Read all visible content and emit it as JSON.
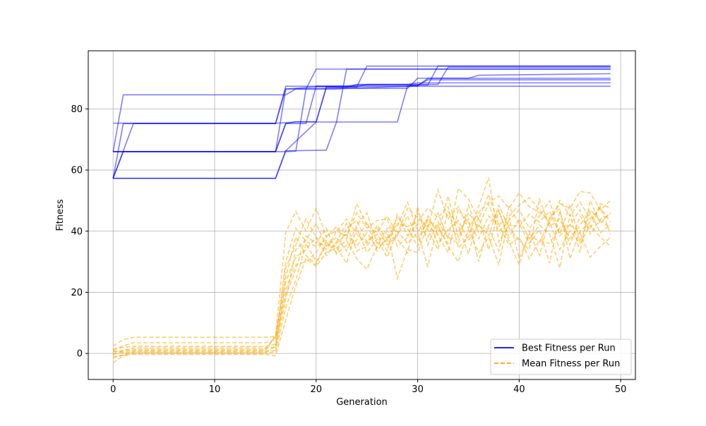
{
  "chart_data": {
    "type": "line",
    "title": "",
    "xlabel": "Generation",
    "ylabel": "Fitness",
    "xlim": [
      -2.45,
      51.45
    ],
    "ylim": [
      -8.5,
      99
    ],
    "xticks": [
      0,
      10,
      20,
      30,
      40,
      50
    ],
    "yticks": [
      0,
      20,
      40,
      60,
      80
    ],
    "grid": true,
    "legend_position": "bottom-right",
    "colors": {
      "best": "#0000ff",
      "mean": "#ffa500",
      "grid": "#b0b0b0"
    },
    "legend": [
      {
        "label": "Best Fitness per Run",
        "style": "solid",
        "color": "#0000ff"
      },
      {
        "label": "Mean Fitness per Run",
        "style": "dashed",
        "color": "#ffa500"
      }
    ],
    "best_runs": [
      [
        [
          0,
          75.3
        ],
        [
          16,
          75.3
        ],
        [
          17,
          75.5
        ],
        [
          18,
          75.7
        ],
        [
          20,
          75.7
        ],
        [
          21,
          87.2
        ],
        [
          24,
          87.2
        ],
        [
          25,
          88.0
        ],
        [
          32,
          88.0
        ],
        [
          33,
          93.6
        ],
        [
          49,
          93.6
        ]
      ],
      [
        [
          0,
          57.3
        ],
        [
          1,
          75.2
        ],
        [
          16,
          75.2
        ],
        [
          17,
          86.5
        ],
        [
          19,
          86.5
        ],
        [
          20,
          93.0
        ],
        [
          49,
          93.0
        ]
      ],
      [
        [
          0,
          66.0
        ],
        [
          1,
          84.6
        ],
        [
          17,
          84.6
        ],
        [
          18,
          86.5
        ],
        [
          22,
          86.5
        ],
        [
          23,
          86.7
        ],
        [
          29,
          86.7
        ],
        [
          30,
          90.0
        ],
        [
          49,
          90.0
        ]
      ],
      [
        [
          0,
          57.3
        ],
        [
          16,
          57.3
        ],
        [
          17,
          66.3
        ],
        [
          21,
          66.5
        ],
        [
          22,
          75.7
        ],
        [
          23,
          93.0
        ],
        [
          49,
          93.0
        ]
      ],
      [
        [
          0,
          57.3
        ],
        [
          2,
          75.2
        ],
        [
          16,
          75.2
        ],
        [
          17,
          87.4
        ],
        [
          49,
          87.4
        ]
      ],
      [
        [
          0,
          66.0
        ],
        [
          16,
          66.0
        ],
        [
          17,
          75.2
        ],
        [
          18,
          75.8
        ],
        [
          20,
          75.8
        ],
        [
          21,
          87.0
        ],
        [
          23,
          87.0
        ],
        [
          24,
          88.0
        ],
        [
          29,
          88.0
        ],
        [
          30,
          88.5
        ],
        [
          49,
          88.5
        ]
      ],
      [
        [
          0,
          66.0
        ],
        [
          16,
          66.0
        ],
        [
          17,
          86.5
        ],
        [
          20,
          87.2
        ],
        [
          24,
          87.2
        ],
        [
          25,
          94.0
        ],
        [
          49,
          94.0
        ]
      ],
      [
        [
          0,
          66.0
        ],
        [
          17,
          66.0
        ],
        [
          18,
          66.2
        ],
        [
          19,
          86.5
        ],
        [
          23,
          86.7
        ],
        [
          30,
          87.5
        ],
        [
          31,
          90.0
        ],
        [
          35,
          90.0
        ],
        [
          36,
          91.0
        ],
        [
          49,
          91.5
        ]
      ],
      [
        [
          0,
          57.3
        ],
        [
          16,
          57.3
        ],
        [
          17,
          66.3
        ],
        [
          20,
          75.7
        ],
        [
          28,
          75.7
        ],
        [
          29,
          87.5
        ],
        [
          30,
          87.7
        ],
        [
          31,
          89.5
        ],
        [
          49,
          89.5
        ]
      ],
      [
        [
          0,
          57.3
        ],
        [
          1,
          66.0
        ],
        [
          16,
          66.0
        ],
        [
          17,
          75.2
        ],
        [
          19,
          75.2
        ],
        [
          20,
          87.5
        ],
        [
          23,
          87.5
        ],
        [
          24,
          87.8
        ],
        [
          31,
          87.8
        ],
        [
          32,
          94.0
        ],
        [
          49,
          94.0
        ]
      ]
    ],
    "mean_runs": [
      [
        2.5,
        4.5,
        5.3,
        5.3,
        5.3,
        5.3,
        5.3,
        5.3,
        5.3,
        5.3,
        5.3,
        5.3,
        5.3,
        5.3,
        5.3,
        5.3,
        5.5,
        39.5,
        46.5,
        40.0,
        47.5,
        38.0,
        41.5,
        37.5,
        49.0,
        42.0,
        39.5,
        45.0,
        39.0,
        47.5,
        44.5,
        41.0,
        53.5,
        44.0,
        48.0,
        41.0,
        46.0,
        49.5,
        51.5,
        47.5,
        52.5,
        48.0,
        46.0,
        44.0,
        49.0,
        47.5,
        53.0,
        52.5,
        47.0,
        50.0
      ],
      [
        1.0,
        2.5,
        3.5,
        3.5,
        3.5,
        3.5,
        3.5,
        3.5,
        3.5,
        3.5,
        3.5,
        3.5,
        3.5,
        3.5,
        3.5,
        3.5,
        4.5,
        28.0,
        35.5,
        44.0,
        38.0,
        34.0,
        40.0,
        38.5,
        46.0,
        41.0,
        43.5,
        44.0,
        35.0,
        38.0,
        42.5,
        38.0,
        46.0,
        37.5,
        54.0,
        50.5,
        44.0,
        52.0,
        42.0,
        45.0,
        48.5,
        51.0,
        47.0,
        42.5,
        50.0,
        45.0,
        49.5,
        44.0,
        47.5,
        43.0
      ],
      [
        -0.5,
        1.0,
        1.8,
        1.8,
        1.8,
        1.8,
        1.8,
        1.8,
        1.8,
        1.8,
        1.8,
        1.8,
        1.8,
        1.8,
        1.8,
        1.8,
        2.0,
        21.0,
        29.0,
        30.0,
        33.0,
        38.5,
        40.0,
        44.0,
        39.0,
        36.0,
        42.0,
        37.0,
        44.5,
        41.0,
        35.0,
        45.0,
        39.0,
        51.5,
        38.0,
        46.0,
        41.5,
        49.0,
        40.0,
        43.5,
        47.0,
        41.0,
        45.0,
        50.0,
        38.5,
        42.0,
        47.0,
        39.0,
        44.0,
        45.5
      ],
      [
        -3.0,
        -0.8,
        0.2,
        0.2,
        0.2,
        0.2,
        0.2,
        0.2,
        0.2,
        0.2,
        0.2,
        0.2,
        0.2,
        0.2,
        0.2,
        0.2,
        0.5,
        15.0,
        24.0,
        36.0,
        30.0,
        35.5,
        35.0,
        29.5,
        41.0,
        33.0,
        37.5,
        31.5,
        40.0,
        36.0,
        39.5,
        28.5,
        42.0,
        35.0,
        30.0,
        40.5,
        33.0,
        38.0,
        29.0,
        44.5,
        31.0,
        39.0,
        36.5,
        43.0,
        34.0,
        40.0,
        36.0,
        42.0,
        38.0,
        35.0
      ],
      [
        -1.0,
        -0.6,
        -0.3,
        -0.3,
        -0.3,
        -0.3,
        -0.3,
        -0.3,
        -0.3,
        -0.3,
        -0.3,
        -0.3,
        -0.3,
        -0.3,
        -0.3,
        -0.3,
        -0.8,
        11.0,
        22.0,
        31.0,
        28.5,
        33.0,
        34.5,
        37.0,
        31.0,
        27.5,
        35.0,
        40.0,
        24.5,
        34.0,
        33.0,
        42.0,
        38.5,
        33.0,
        47.0,
        43.0,
        37.5,
        45.0,
        42.0,
        35.5,
        38.0,
        31.0,
        37.0,
        36.0,
        41.0,
        42.0,
        39.5,
        31.5,
        35.0,
        38.0
      ],
      [
        0.0,
        0.3,
        0.3,
        0.3,
        0.3,
        0.3,
        0.3,
        0.3,
        0.3,
        0.3,
        0.3,
        0.3,
        0.3,
        0.3,
        0.3,
        0.3,
        2.5,
        17.5,
        34.0,
        37.0,
        42.5,
        35.0,
        38.0,
        33.5,
        42.0,
        46.0,
        36.0,
        41.0,
        41.5,
        49.5,
        40.0,
        44.0,
        36.0,
        40.5,
        43.5,
        37.0,
        42.0,
        38.5,
        48.5,
        41.0,
        37.0,
        34.0,
        50.5,
        41.5,
        44.0,
        37.5,
        42.0,
        47.0,
        43.5,
        41.0
      ],
      [
        -1.5,
        -0.5,
        0.7,
        0.7,
        0.7,
        0.7,
        0.7,
        0.7,
        0.7,
        0.7,
        0.7,
        0.7,
        0.7,
        0.7,
        0.7,
        0.7,
        1.0,
        25.0,
        38.0,
        32.0,
        29.0,
        36.5,
        33.0,
        41.0,
        43.5,
        36.5,
        39.0,
        33.5,
        45.5,
        38.5,
        46.0,
        40.5,
        34.0,
        46.5,
        42.0,
        32.5,
        44.5,
        34.0,
        47.0,
        36.5,
        29.0,
        40.0,
        32.0,
        44.5,
        47.5,
        31.0,
        40.0,
        43.0,
        48.0,
        39.0
      ],
      [
        0.5,
        1.0,
        1.3,
        1.3,
        1.3,
        1.3,
        1.3,
        1.3,
        1.3,
        1.3,
        1.3,
        1.3,
        1.3,
        1.3,
        1.3,
        1.3,
        5.5,
        19.0,
        27.5,
        38.5,
        36.0,
        41.0,
        32.5,
        35.5,
        37.0,
        43.0,
        33.5,
        38.0,
        37.5,
        33.0,
        48.0,
        35.5,
        43.0,
        38.0,
        36.0,
        48.5,
        39.5,
        41.0,
        33.5,
        48.0,
        42.5,
        36.0,
        40.5,
        29.5,
        46.5,
        35.5,
        45.0,
        40.5,
        49.0,
        47.5
      ],
      [
        1.5,
        2.0,
        2.3,
        2.3,
        2.3,
        2.3,
        2.3,
        2.3,
        2.3,
        2.3,
        2.3,
        2.3,
        2.3,
        2.3,
        2.3,
        2.3,
        3.0,
        30.0,
        41.0,
        36.5,
        35.0,
        37.0,
        36.0,
        39.0,
        35.0,
        39.5,
        34.5,
        37.0,
        42.5,
        41.5,
        43.0,
        47.5,
        44.5,
        48.0,
        34.5,
        38.0,
        48.0,
        57.5,
        36.5,
        42.0,
        41.5,
        45.5,
        43.0,
        46.5,
        39.0,
        48.5,
        36.5,
        46.0,
        39.5,
        42.0
      ],
      [
        0.8,
        0.5,
        0.9,
        0.9,
        0.9,
        0.9,
        0.9,
        0.9,
        0.9,
        0.9,
        0.9,
        0.9,
        0.9,
        0.9,
        0.9,
        0.9,
        6.0,
        23.5,
        31.5,
        34.0,
        38.0,
        32.0,
        36.5,
        42.5,
        33.5,
        35.0,
        41.0,
        35.5,
        38.5,
        45.0,
        37.0,
        43.5,
        41.0,
        36.0,
        40.0,
        44.0,
        30.0,
        42.0,
        46.5,
        38.0,
        44.0,
        37.5,
        42.0,
        39.0,
        28.0,
        45.5,
        33.0,
        50.0,
        42.5,
        46.0
      ]
    ]
  }
}
